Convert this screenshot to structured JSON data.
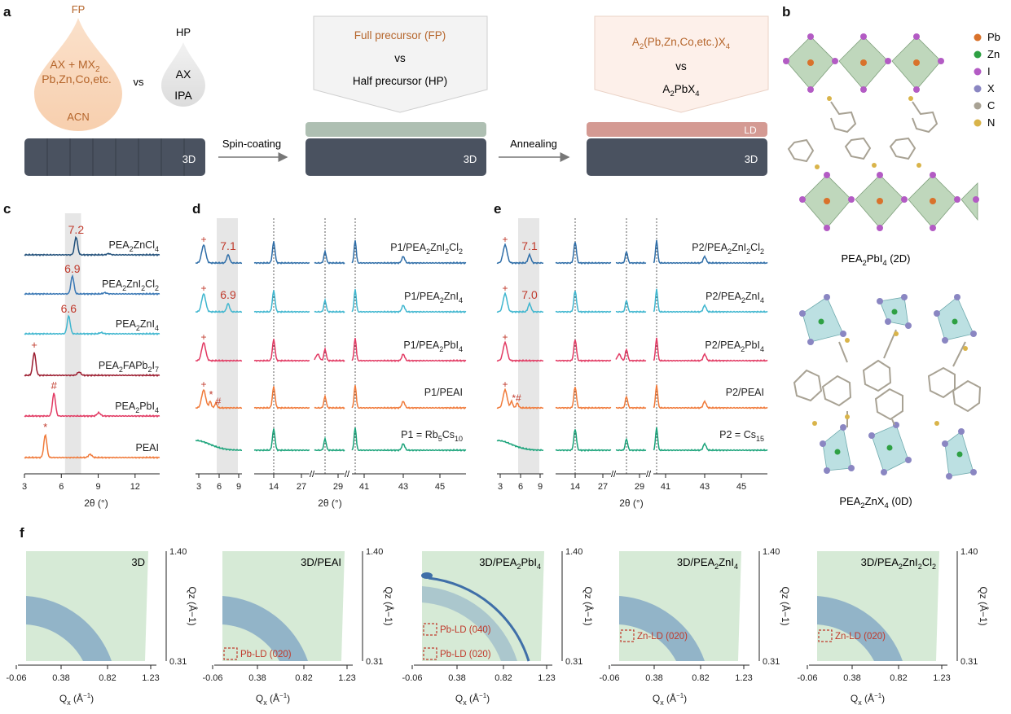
{
  "panel_labels": {
    "a": "a",
    "b": "b",
    "c": "c",
    "d": "d",
    "e": "e",
    "f": "f"
  },
  "panel_a": {
    "fp_drop": {
      "title": "FP",
      "line1": "AX + MX",
      "line1_sub": "2",
      "line2": "Pb,Zn,Co,etc.",
      "solvent": "ACN"
    },
    "vs": "vs",
    "hp_drop": {
      "title": "HP",
      "line1": "AX",
      "solvent": "IPA"
    },
    "box1": {
      "line1": "Full precursor (FP)",
      "vs": "vs",
      "line2": "Half precursor (HP)"
    },
    "box2": {
      "line1_a": "A",
      "line1_s1": "2",
      "line1_b": "(Pb,Zn,Co,etc.)X",
      "line1_s2": "4",
      "vs": "vs",
      "line2_a": "A",
      "line2_s": "2",
      "line2_b": "PbX",
      "line2_s2": "4"
    },
    "step1": "Spin-coating",
    "step2": "Annealing",
    "label_3d": "3D",
    "label_ld": "LD"
  },
  "panel_b": {
    "legend": [
      {
        "sym": "Pb",
        "color": "#d9722b"
      },
      {
        "sym": "Zn",
        "color": "#2ea043"
      },
      {
        "sym": "I",
        "color": "#b35bc4"
      },
      {
        "sym": "X",
        "color": "#8a86c2"
      },
      {
        "sym": "C",
        "color": "#a8a294"
      },
      {
        "sym": "N",
        "color": "#d9b44a"
      }
    ],
    "cap1_a": "PEA",
    "cap1_s": "2",
    "cap1_b": "PbI",
    "cap1_s2": "4",
    "cap1_c": " (2D)",
    "cap2_a": "PEA",
    "cap2_s": "2",
    "cap2_b": "ZnX",
    "cap2_s2": "4",
    "cap2_c": " (0D)"
  },
  "chart_data": [
    {
      "panel": "c",
      "type": "line",
      "xlabel": "2θ (°)",
      "xlim": [
        3,
        14
      ],
      "xticks": [
        "3",
        "6",
        "9",
        "12"
      ],
      "series": [
        {
          "name": "PEA2ZnCl4",
          "label_a": "PEA",
          "label_s": "2",
          "label_b": "ZnCl",
          "label_s2": "4",
          "color": "#1f4e79",
          "peaks": [
            {
              "x": 7.2,
              "label": "7.2"
            }
          ]
        },
        {
          "name": "PEA2ZnI2Cl2",
          "label_a": "PEA",
          "label_s": "2",
          "label_b": "ZnI",
          "label_s2": "2",
          "label_c": "Cl",
          "label_s3": "2",
          "color": "#3a78b5",
          "peaks": [
            {
              "x": 6.9,
              "label": "6.9"
            }
          ]
        },
        {
          "name": "PEA2ZnI4",
          "label_a": "PEA",
          "label_s": "2",
          "label_b": "ZnI",
          "label_s2": "4",
          "color": "#3fb6cf",
          "peaks": [
            {
              "x": 6.6,
              "label": "6.6"
            }
          ]
        },
        {
          "name": "PEA2FAPb2I7",
          "label_a": "PEA",
          "label_s": "2",
          "label_b": "FAPb",
          "label_s2": "2",
          "label_c": "I",
          "label_s3": "7",
          "color": "#9b1b2e",
          "peaks": [
            {
              "x": 3.8,
              "label": "+"
            }
          ]
        },
        {
          "name": "PEA2PbI4",
          "label_a": "PEA",
          "label_s": "2",
          "label_b": "PbI",
          "label_s2": "4",
          "color": "#e23a63",
          "peaks": [
            {
              "x": 5.4,
              "label": "#"
            }
          ]
        },
        {
          "name": "PEAI",
          "label_a": "PEAI",
          "color": "#f07a3a",
          "peaks": [
            {
              "x": 4.7,
              "label": "*"
            }
          ]
        }
      ],
      "highlight_band": [
        6.3,
        7.6
      ]
    },
    {
      "panel": "d",
      "type": "line",
      "xlabel": "2θ (°)",
      "xticks": [
        "3",
        "6",
        "9",
        "14",
        "27",
        "29",
        "41",
        "43",
        "45"
      ],
      "series": [
        {
          "name": "P1/PEA2ZnI2Cl2",
          "label_a": "P1/PEA",
          "label_s": "2",
          "label_b": "ZnI",
          "label_s2": "2",
          "label_c": "Cl",
          "label_s3": "2",
          "color": "#2f6ea8",
          "low_angle_label": "7.1"
        },
        {
          "name": "P1/PEA2ZnI4",
          "label_a": "P1/PEA",
          "label_s": "2",
          "label_b": "ZnI",
          "label_s2": "4",
          "color": "#3fb6cf",
          "low_angle_label": "6.9"
        },
        {
          "name": "P1/PEA2PbI4",
          "label_a": "P1/PEA",
          "label_s": "2",
          "label_b": "PbI",
          "label_s2": "4",
          "color": "#e23a63"
        },
        {
          "name": "P1/PEAI",
          "label_a": "P1/PEAI",
          "color": "#f07a3a"
        },
        {
          "name": "P1 = Rb5Cs10",
          "label_a": "P1 = Rb",
          "label_s": "5",
          "label_b": "Cs",
          "label_s2": "10",
          "color": "#1aa37a"
        }
      ],
      "markers": [
        "+",
        "*",
        "#"
      ]
    },
    {
      "panel": "e",
      "type": "line",
      "xlabel": "2θ (°)",
      "xticks": [
        "3",
        "6",
        "9",
        "14",
        "27",
        "29",
        "41",
        "43",
        "45"
      ],
      "series": [
        {
          "name": "P2/PEA2ZnI2Cl2",
          "label_a": "P2/PEA",
          "label_s": "2",
          "label_b": "ZnI",
          "label_s2": "2",
          "label_c": "Cl",
          "label_s3": "2",
          "color": "#2f6ea8",
          "low_angle_label": "7.1"
        },
        {
          "name": "P2/PEA2ZnI4",
          "label_a": "P2/PEA",
          "label_s": "2",
          "label_b": "ZnI",
          "label_s2": "4",
          "color": "#3fb6cf",
          "low_angle_label": "7.0"
        },
        {
          "name": "P2/PEA2PbI4",
          "label_a": "P2/PEA",
          "label_s": "2",
          "label_b": "PbI",
          "label_s2": "4",
          "color": "#e23a63"
        },
        {
          "name": "P2/PEAI",
          "label_a": "P2/PEAI",
          "color": "#f07a3a"
        },
        {
          "name": "P2 = Cs15",
          "label_a": "P2 = Cs",
          "label_s": "15",
          "color": "#1aa37a"
        }
      ],
      "markers": [
        "+",
        "*#"
      ]
    },
    {
      "panel": "f",
      "type": "heatmap",
      "xlabel_a": "Q",
      "xlabel_s": "x",
      "xlabel_b": " (Å",
      "xlabel_sup": "−1",
      "xlabel_c": ")",
      "ylabel": "Qz (Å−1)",
      "xticks": [
        "-0.06",
        "0.38",
        "0.82",
        "1.23"
      ],
      "yticks": [
        "0.31",
        "1.40"
      ],
      "maps": [
        {
          "title_a": "3D",
          "annotations": []
        },
        {
          "title_a": "3D/PEAI",
          "annotations": [
            "Pb-LD (020)"
          ]
        },
        {
          "title_a": "3D/PEA",
          "title_s": "2",
          "title_b": "PbI",
          "title_s2": "4",
          "annotations": [
            "Pb-LD (040)",
            "Pb-LD (020)"
          ]
        },
        {
          "title_a": "3D/PEA",
          "title_s": "2",
          "title_b": "ZnI",
          "title_s2": "4",
          "annotations": [
            "Zn-LD (020)"
          ]
        },
        {
          "title_a": "3D/PEA",
          "title_s": "2",
          "title_b": "ZnI",
          "title_s2": "2",
          "title_c": "Cl",
          "title_s3": "2",
          "annotations": [
            "Zn-LD (020)"
          ]
        }
      ]
    }
  ],
  "colors": {
    "slab": "#4a5260",
    "hp_layer": "#aebfb2",
    "ld_layer": "#d49a93",
    "band": "#e6e6e6",
    "annot": "#c0392b",
    "gi_bg": "#d6ead6",
    "gi_ring": "#3f6fa8"
  }
}
